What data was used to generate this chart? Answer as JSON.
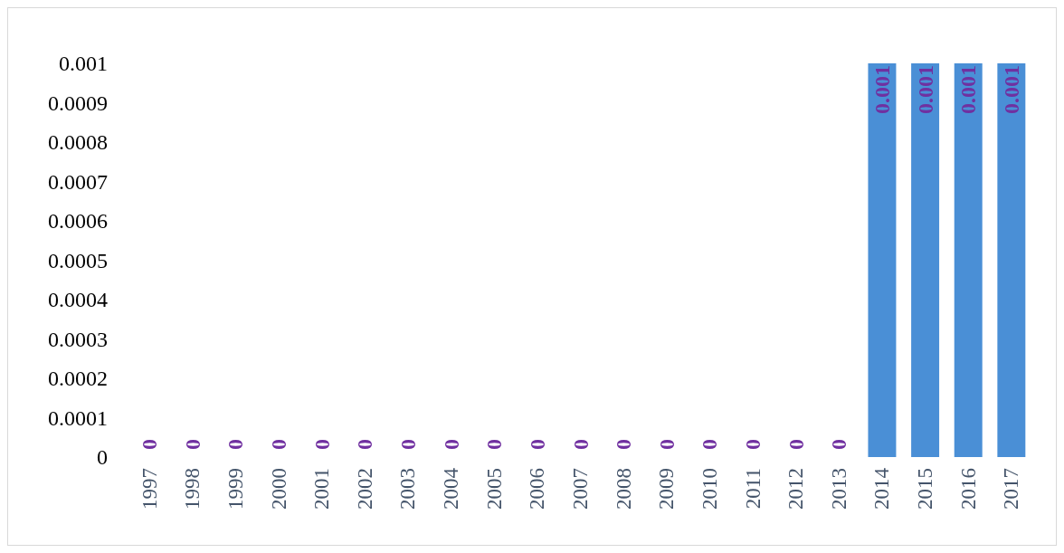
{
  "chart_data": {
    "type": "bar",
    "categories": [
      "1997",
      "1998",
      "1999",
      "2000",
      "2001",
      "2002",
      "2003",
      "2004",
      "2005",
      "2006",
      "2007",
      "2008",
      "2009",
      "2010",
      "2011",
      "2012",
      "2013",
      "2014",
      "2015",
      "2016",
      "2017"
    ],
    "values": [
      0,
      0,
      0,
      0,
      0,
      0,
      0,
      0,
      0,
      0,
      0,
      0,
      0,
      0,
      0,
      0,
      0,
      0.001,
      0.001,
      0.001,
      0.001
    ],
    "color": "#4a8fd6",
    "ylim": [
      0,
      0.001
    ],
    "yticks": [
      0,
      0.0001,
      0.0002,
      0.0003,
      0.0004,
      0.0005,
      0.0006,
      0.0007,
      0.0008,
      0.0009,
      0.001
    ],
    "data_labels": true,
    "grid": false
  }
}
